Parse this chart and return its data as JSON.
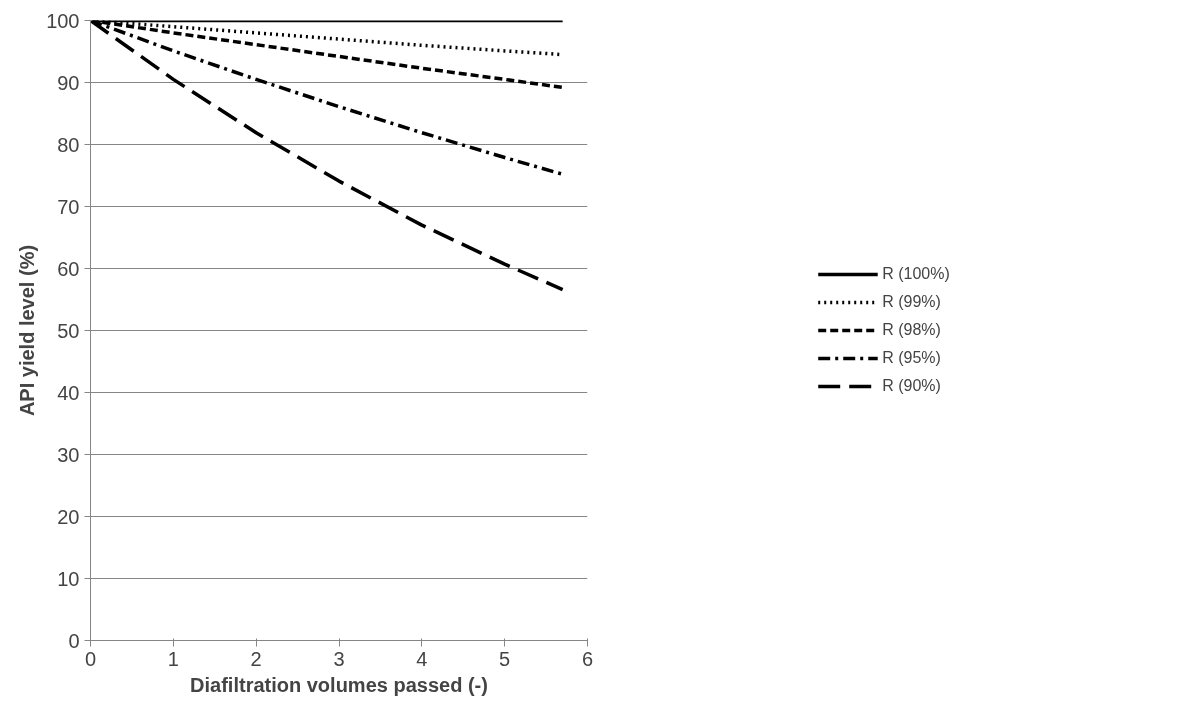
{
  "chart_data": {
    "type": "line",
    "xlabel": "Diafiltration volumes passed (-)",
    "ylabel": "API yield level (%)",
    "xlim": [
      0,
      6
    ],
    "xticks": [
      0,
      1,
      2,
      3,
      4,
      5,
      6
    ],
    "ylim": [
      0,
      100
    ],
    "yticks": [
      0,
      10,
      20,
      30,
      40,
      50,
      60,
      70,
      80,
      90,
      100
    ],
    "grid": "y",
    "legend": "right",
    "marker": "none",
    "x": [
      0,
      1,
      2,
      3,
      4,
      5,
      5.7
    ],
    "series": [
      {
        "name": "R (100%)",
        "color": "#000000",
        "line_style": "solid",
        "values": [
          100,
          100,
          100,
          100,
          100,
          100,
          100
        ]
      },
      {
        "name": "R (99%)",
        "color": "#000000",
        "line_style": "dotted",
        "values": [
          100,
          99,
          98,
          97,
          96,
          95.1,
          94.5
        ]
      },
      {
        "name": "R (98%)",
        "color": "#000000",
        "line_style": "dashed",
        "values": [
          100,
          98,
          96.1,
          94.2,
          92.3,
          90.5,
          89.2
        ]
      },
      {
        "name": "R (95%)",
        "color": "#000000",
        "line_style": "dashdot",
        "values": [
          100,
          95.1,
          90.5,
          86.1,
          81.9,
          77.9,
          75.2
        ]
      },
      {
        "name": "R (90%)",
        "color": "#000000",
        "line_style": "longdash",
        "values": [
          100,
          90.5,
          81.9,
          74.1,
          67,
          60.7,
          56.6
        ]
      }
    ]
  }
}
